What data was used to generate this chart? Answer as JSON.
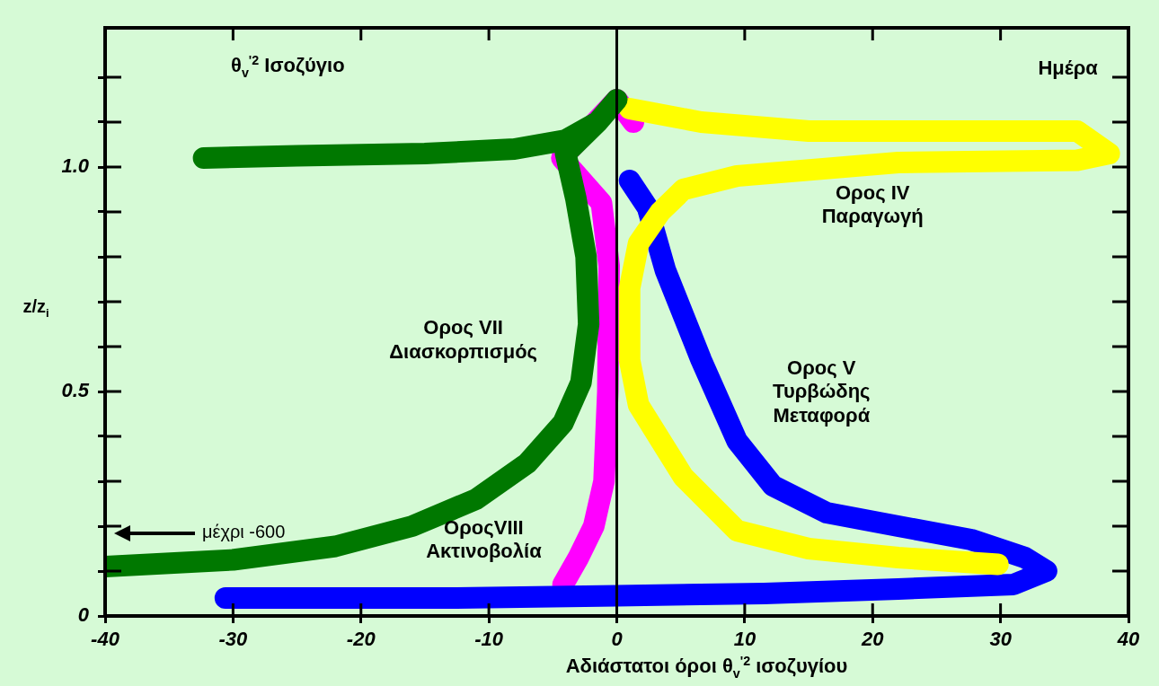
{
  "chart_data": {
    "type": "line",
    "title": "θ$_{v}$$^{'2}$ Ισοζύγιο",
    "xlabel": "Αδιάστατοι όροι θ$_{v}$$^{'2}$ ισοζυγίου",
    "ylabel": "z/z$_{i}$",
    "xlim": [
      -40,
      40
    ],
    "ylim": [
      0,
      1.31
    ],
    "xticks": [
      -40,
      -30,
      -20,
      -10,
      0,
      10,
      20,
      30,
      40
    ],
    "yticks": [
      0,
      {
        "value": 0.1,
        "label": null
      },
      {
        "value": 0.2,
        "label": null
      },
      {
        "value": 0.3,
        "label": null
      },
      {
        "value": 0.4,
        "label": null
      },
      0.5,
      {
        "value": 0.6,
        "label": null
      },
      {
        "value": 0.7,
        "label": null
      },
      {
        "value": 0.8,
        "label": null
      },
      {
        "value": 0.9,
        "label": null
      },
      {
        "value": 1,
        "label": "1.0"
      },
      {
        "value": 1.1,
        "label": null
      },
      {
        "value": 1.2,
        "label": null
      }
    ],
    "grid": false,
    "legend": false,
    "series": [
      {
        "color": "#007800",
        "x": [
          -32.3,
          -25,
          -15,
          -8,
          -4,
          -1.5,
          0,
          -1.5,
          -4,
          -3.2,
          -2.4,
          -2.2,
          -2.8,
          -4.2,
          -7,
          -11,
          -16,
          -22,
          -30,
          -40
        ],
        "values": [
          1.02,
          1.025,
          1.03,
          1.04,
          1.06,
          1.1,
          1.15,
          1.1,
          1.03,
          0.93,
          0.8,
          0.65,
          0.52,
          0.43,
          0.34,
          0.26,
          0.2,
          0.155,
          0.125,
          0.11
        ]
      },
      {
        "color": "#ffff00",
        "x": [
          1,
          6.6,
          15,
          29,
          36,
          38.5,
          36,
          22,
          9.4,
          5.2,
          3.4,
          1.7,
          1,
          1,
          1.7,
          5.2,
          9.4,
          15,
          22,
          29.8
        ],
        "values": [
          1.13,
          1.1,
          1.08,
          1.08,
          1.08,
          1.03,
          1.015,
          1.01,
          0.98,
          0.95,
          0.9,
          0.83,
          0.73,
          0.57,
          0.47,
          0.31,
          0.19,
          0.15,
          0.13,
          0.115
        ]
      },
      {
        "color": "#0000ff",
        "x": [
          1,
          2.4,
          3.8,
          6.6,
          9.4,
          12.2,
          16.4,
          22,
          27.7,
          31.9,
          33.6,
          31,
          22,
          11.5,
          0,
          -13,
          -30.6
        ],
        "values": [
          0.97,
          0.91,
          0.77,
          0.57,
          0.39,
          0.29,
          0.23,
          0.2,
          0.17,
          0.13,
          0.1,
          0.07,
          0.06,
          0.05,
          0.045,
          0.04,
          0.04
        ]
      },
      {
        "color": "#ff00ff",
        "x": [
          1.3,
          0,
          -4.3,
          -1.2,
          -0.6,
          -0.7,
          -1,
          -1.8,
          -3,
          -4.2
        ],
        "values": [
          1.1,
          1.15,
          1.02,
          0.92,
          0.78,
          0.5,
          0.3,
          0.2,
          0.13,
          0.07
        ]
      }
    ],
    "ref_lines": [
      {
        "axis": "x",
        "value": 0,
        "color": "#000000"
      }
    ],
    "annotations": [
      "Ημέρα",
      "Ορος IV\nΠαραγωγή",
      "Ορος VII\nΔιασκορπισμός",
      "Ορος V\nΤυρβώδης\nΜεταφορά",
      "ΟροςVIII\nΑκτινοβολία",
      "μέχρι -600"
    ]
  }
}
